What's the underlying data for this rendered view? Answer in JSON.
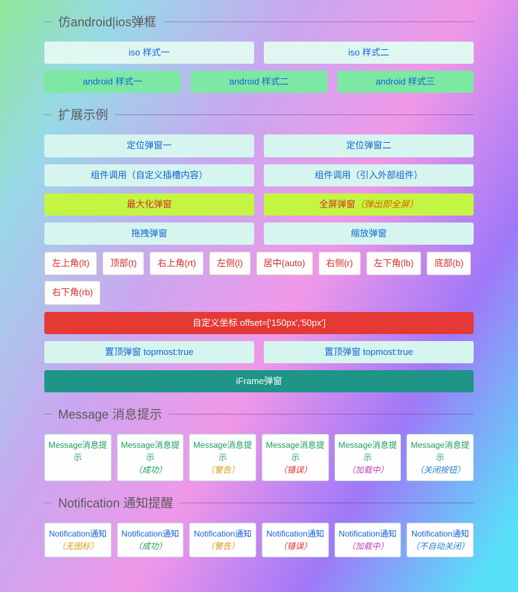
{
  "sections": {
    "mobile": {
      "title": "仿android|ios弹框",
      "ios": [
        "iso 样式一",
        "iso 样式二"
      ],
      "android": [
        "android 样式一",
        "android 样式二",
        "android 样式三"
      ]
    },
    "extend": {
      "title": "扩展示例",
      "locate": [
        "定位弹窗一",
        "定位弹窗二"
      ],
      "component": [
        "组件调用（自定义插槽内容）",
        "组件调用（引入外部组件）"
      ],
      "lime": [
        {
          "main": "最大化弹窗",
          "accent": ""
        },
        {
          "main": "全屏弹窗",
          "accent": "（弹出即全屏）"
        }
      ],
      "scale": [
        "拖拽弹窗",
        "缩放弹窗"
      ],
      "positions": [
        "左上角(lt)",
        "顶部(t)",
        "右上角(rt)",
        "左侧(l)",
        "居中(auto)",
        "右侧(r)",
        "左下角(lb)",
        "底部(b)",
        "右下角(rb)"
      ],
      "offset": "自定义坐标 offset=['150px','50px']",
      "topmost": [
        "置顶弹窗 topmost:true",
        "置顶弹窗 topmost:true"
      ],
      "iframe": "iFrame弹窗"
    },
    "message": {
      "title": "Message 消息提示",
      "items": [
        {
          "line1": "Message消息提",
          "line2": "示",
          "sub": "",
          "cls": ""
        },
        {
          "line1": "Message消息提",
          "line2": "示",
          "sub": "（成功）",
          "cls": "sub-success"
        },
        {
          "line1": "Message消息提",
          "line2": "示",
          "sub": "（警告）",
          "cls": "sub-warning"
        },
        {
          "line1": "Message消息提",
          "line2": "示",
          "sub": "（错误）",
          "cls": "sub-error"
        },
        {
          "line1": "Message消息提",
          "line2": "示",
          "sub": "（加载中）",
          "cls": "sub-loading"
        },
        {
          "line1": "Message消息提",
          "line2": "示",
          "sub": "（关闭按钮）",
          "cls": "sub-noauto"
        }
      ]
    },
    "notification": {
      "title": "Notification 通知提醒",
      "items": [
        {
          "line1": "Notification通知",
          "sub": "（无图标）",
          "cls": "sub-noicon"
        },
        {
          "line1": "Notification通知",
          "sub": "（成功）",
          "cls": "sub-success"
        },
        {
          "line1": "Notification通知",
          "sub": "（警告）",
          "cls": "sub-warning"
        },
        {
          "line1": "Notification通知",
          "sub": "（错误）",
          "cls": "sub-error"
        },
        {
          "line1": "Notification通知",
          "sub": "（加载中）",
          "cls": "sub-loading"
        },
        {
          "line1": "Notification通知",
          "sub": "（不自动关闭）",
          "cls": "sub-noauto"
        }
      ]
    }
  }
}
